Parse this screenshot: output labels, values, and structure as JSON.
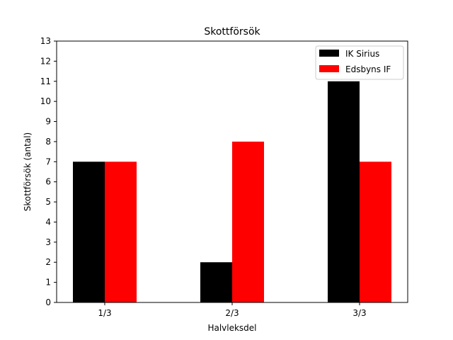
{
  "chart_data": {
    "type": "bar",
    "title": "Skottförsök",
    "xlabel": "Halvleksdel",
    "ylabel": "Skottförsök (antal)",
    "categories": [
      "1/3",
      "2/3",
      "3/3"
    ],
    "ylim": [
      0,
      13
    ],
    "yticks": [
      0,
      1,
      2,
      3,
      4,
      5,
      6,
      7,
      8,
      9,
      10,
      11,
      12,
      13
    ],
    "grid": false,
    "legend_position": "top-right",
    "series": [
      {
        "name": "IK Sirius",
        "color": "#000000",
        "values": [
          7,
          2,
          11
        ]
      },
      {
        "name": "Edsbyns IF",
        "color": "#ff0000",
        "values": [
          7,
          8,
          7
        ]
      }
    ]
  }
}
